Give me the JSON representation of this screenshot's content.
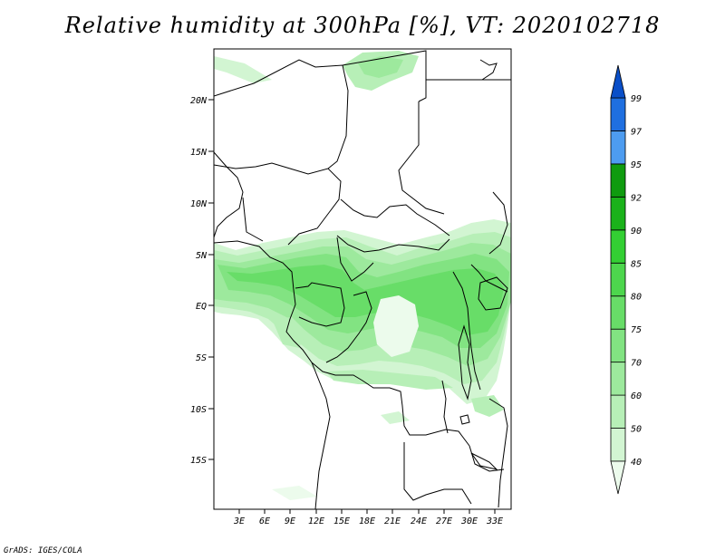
{
  "title": "Relative humidity at 300hPa [%], VT: 2020102718",
  "credit": "GrADS: IGES/COLA",
  "map": {
    "lat_ticks": [
      "20N",
      "15N",
      "10N",
      "5N",
      "EQ",
      "5S",
      "10S",
      "15S"
    ],
    "lon_ticks": [
      "3E",
      "6E",
      "9E",
      "12E",
      "15E",
      "18E",
      "21E",
      "24E",
      "27E",
      "30E",
      "33E"
    ]
  },
  "colorbar": {
    "levels": [
      "40",
      "50",
      "60",
      "70",
      "75",
      "80",
      "85",
      "90",
      "92",
      "95",
      "97",
      "99"
    ],
    "colors": [
      "#ecfbec",
      "#d2f5d2",
      "#b7efb7",
      "#9de99d",
      "#82e382",
      "#68dd68",
      "#4dd64d",
      "#33cf33",
      "#1ab21a",
      "#0f9b0f",
      "#4d9cf0",
      "#1f6fe0",
      "#0a4fc8"
    ]
  }
}
